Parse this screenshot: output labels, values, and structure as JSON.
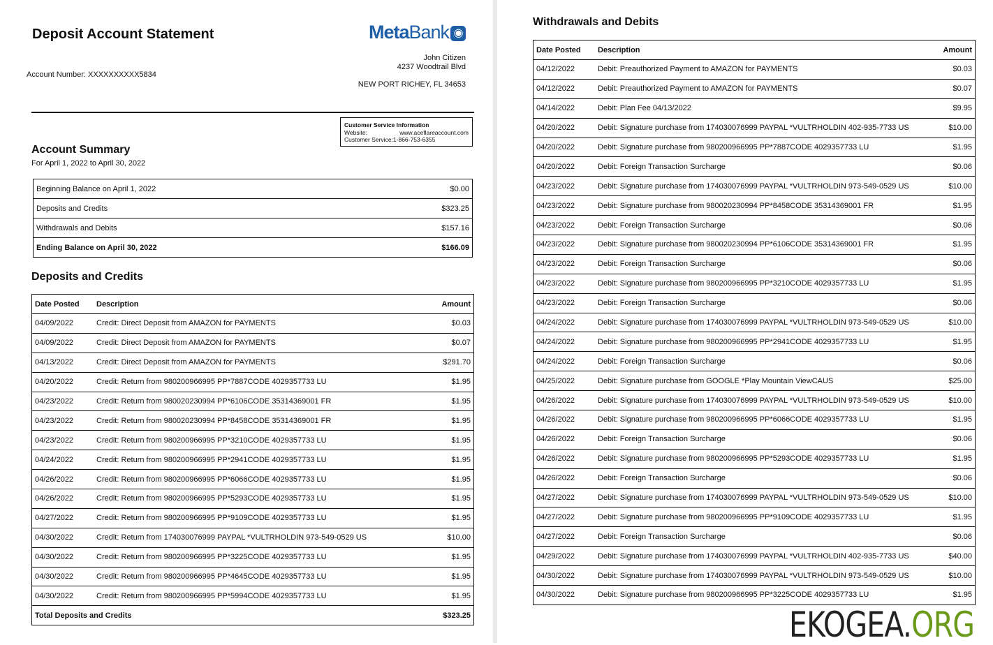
{
  "header": {
    "title": "Deposit Account Statement",
    "bank_logo": "MetaBank",
    "account_number": "Account Number: XXXXXXXXXX5834",
    "name": "John Citizen",
    "street": "4237 Woodtrail Blvd",
    "city": "NEW PORT RICHEY, FL 34653"
  },
  "customer_service": {
    "title": "Customer Service Information",
    "website_label": "Website:",
    "website": "www.aceflareaccount.com",
    "phone": "Customer Service:1-866-753-6355"
  },
  "summary": {
    "title": "Account Summary",
    "period": "For April 1, 2022 to April 30, 2022",
    "rows": [
      [
        "Beginning Balance on April 1, 2022",
        "$0.00"
      ],
      [
        "Deposits and Credits",
        "$323.25"
      ],
      [
        "Withdrawals and Debits",
        "$157.16"
      ],
      [
        "Ending Balance on April 30, 2022",
        "$166.09"
      ]
    ]
  },
  "deposits": {
    "title": "Deposits and Credits",
    "headers": [
      "Date Posted",
      "Description",
      "Amount"
    ],
    "rows": [
      [
        "04/09/2022",
        "Credit: Direct Deposit from AMAZON for PAYMENTS",
        "$0.03"
      ],
      [
        "04/09/2022",
        "Credit: Direct Deposit from AMAZON for PAYMENTS",
        "$0.07"
      ],
      [
        "04/13/2022",
        "Credit: Direct Deposit from AMAZON for PAYMENTS",
        "$291.70"
      ],
      [
        "04/20/2022",
        "Credit: Return from 980200966995 PP*7887CODE 4029357733 LU",
        "$1.95"
      ],
      [
        "04/23/2022",
        "Credit: Return from 980020230994 PP*6106CODE 35314369001 FR",
        "$1.95"
      ],
      [
        "04/23/2022",
        "Credit: Return from 980020230994 PP*8458CODE 35314369001 FR",
        "$1.95"
      ],
      [
        "04/23/2022",
        "Credit: Return from 980200966995 PP*3210CODE 4029357733 LU",
        "$1.95"
      ],
      [
        "04/24/2022",
        "Credit: Return from 980200966995 PP*2941CODE 4029357733 LU",
        "$1.95"
      ],
      [
        "04/26/2022",
        "Credit: Return from 980200966995 PP*6066CODE 4029357733 LU",
        "$1.95"
      ],
      [
        "04/26/2022",
        "Credit: Return from 980200966995 PP*5293CODE 4029357733 LU",
        "$1.95"
      ],
      [
        "04/27/2022",
        "Credit: Return from 980200966995 PP*9109CODE 4029357733 LU",
        "$1.95"
      ],
      [
        "04/30/2022",
        "Credit: Return from 174030076999 PAYPAL *VULTRHOLDIN 973-549-0529 US",
        "$10.00"
      ],
      [
        "04/30/2022",
        "Credit: Return from 980200966995 PP*3225CODE 4029357733 LU",
        "$1.95"
      ],
      [
        "04/30/2022",
        "Credit: Return from 980200966995 PP*4645CODE 4029357733 LU",
        "$1.95"
      ],
      [
        "04/30/2022",
        "Credit: Return from 980200966995 PP*5994CODE 4029357733 LU",
        "$1.95"
      ]
    ],
    "total_label": "Total Deposits and Credits",
    "total": "$323.25"
  },
  "withdrawals": {
    "title": "Withdrawals and Debits",
    "headers": [
      "Date Posted",
      "Description",
      "Amount"
    ],
    "rows": [
      [
        "04/12/2022",
        "Debit: Preauthorized Payment to AMAZON for PAYMENTS",
        "$0.03"
      ],
      [
        "04/12/2022",
        "Debit: Preauthorized Payment to AMAZON for PAYMENTS",
        "$0.07"
      ],
      [
        "04/14/2022",
        "Debit: Plan Fee 04/13/2022",
        "$9.95"
      ],
      [
        "04/20/2022",
        "Debit: Signature purchase from 174030076999 PAYPAL *VULTRHOLDIN 402-935-7733 US",
        "$10.00"
      ],
      [
        "04/20/2022",
        "Debit: Signature purchase from 980200966995 PP*7887CODE 4029357733 LU",
        "$1.95"
      ],
      [
        "04/20/2022",
        "Debit: Foreign Transaction Surcharge",
        "$0.06"
      ],
      [
        "04/23/2022",
        "Debit: Signature purchase from 174030076999 PAYPAL *VULTRHOLDIN 973-549-0529 US",
        "$10.00"
      ],
      [
        "04/23/2022",
        "Debit: Signature purchase from 980020230994 PP*8458CODE 35314369001 FR",
        "$1.95"
      ],
      [
        "04/23/2022",
        "Debit: Foreign Transaction Surcharge",
        "$0.06"
      ],
      [
        "04/23/2022",
        "Debit: Signature purchase from 980020230994 PP*6106CODE 35314369001 FR",
        "$1.95"
      ],
      [
        "04/23/2022",
        "Debit: Foreign Transaction Surcharge",
        "$0.06"
      ],
      [
        "04/23/2022",
        "Debit: Signature purchase from 980200966995 PP*3210CODE 4029357733 LU",
        "$1.95"
      ],
      [
        "04/23/2022",
        "Debit: Foreign Transaction Surcharge",
        "$0.06"
      ],
      [
        "04/24/2022",
        "Debit: Signature purchase from 174030076999 PAYPAL *VULTRHOLDIN 973-549-0529 US",
        "$10.00"
      ],
      [
        "04/24/2022",
        "Debit: Signature purchase from 980200966995 PP*2941CODE 4029357733 LU",
        "$1.95"
      ],
      [
        "04/24/2022",
        "Debit: Foreign Transaction Surcharge",
        "$0.06"
      ],
      [
        "04/25/2022",
        "Debit: Signature purchase from GOOGLE *Play Mountain ViewCAUS",
        "$25.00"
      ],
      [
        "04/26/2022",
        "Debit: Signature purchase from 174030076999 PAYPAL *VULTRHOLDIN 973-549-0529 US",
        "$10.00"
      ],
      [
        "04/26/2022",
        "Debit: Signature purchase from 980200966995 PP*6066CODE 4029357733 LU",
        "$1.95"
      ],
      [
        "04/26/2022",
        "Debit: Foreign Transaction Surcharge",
        "$0.06"
      ],
      [
        "04/26/2022",
        "Debit: Signature purchase from 980200966995 PP*5293CODE 4029357733 LU",
        "$1.95"
      ],
      [
        "04/26/2022",
        "Debit: Foreign Transaction Surcharge",
        "$0.06"
      ],
      [
        "04/27/2022",
        "Debit: Signature purchase from 174030076999 PAYPAL *VULTRHOLDIN 973-549-0529 US",
        "$10.00"
      ],
      [
        "04/27/2022",
        "Debit: Signature purchase from 980200966995 PP*9109CODE 4029357733 LU",
        "$1.95"
      ],
      [
        "04/27/2022",
        "Debit: Foreign Transaction Surcharge",
        "$0.06"
      ],
      [
        "04/29/2022",
        "Debit: Signature purchase from 174030076999 PAYPAL *VULTRHOLDIN 402-935-7733 US",
        "$40.00"
      ],
      [
        "04/30/2022",
        "Debit: Signature purchase from 174030076999 PAYPAL *VULTRHOLDIN 973-549-0529 US",
        "$10.00"
      ],
      [
        "04/30/2022",
        "Debit: Signature purchase from 980200966995 PP*3225CODE 4029357733 LU",
        "$1.95"
      ]
    ]
  },
  "watermark": {
    "left": "EKOGEA.",
    "right": "ORG"
  }
}
